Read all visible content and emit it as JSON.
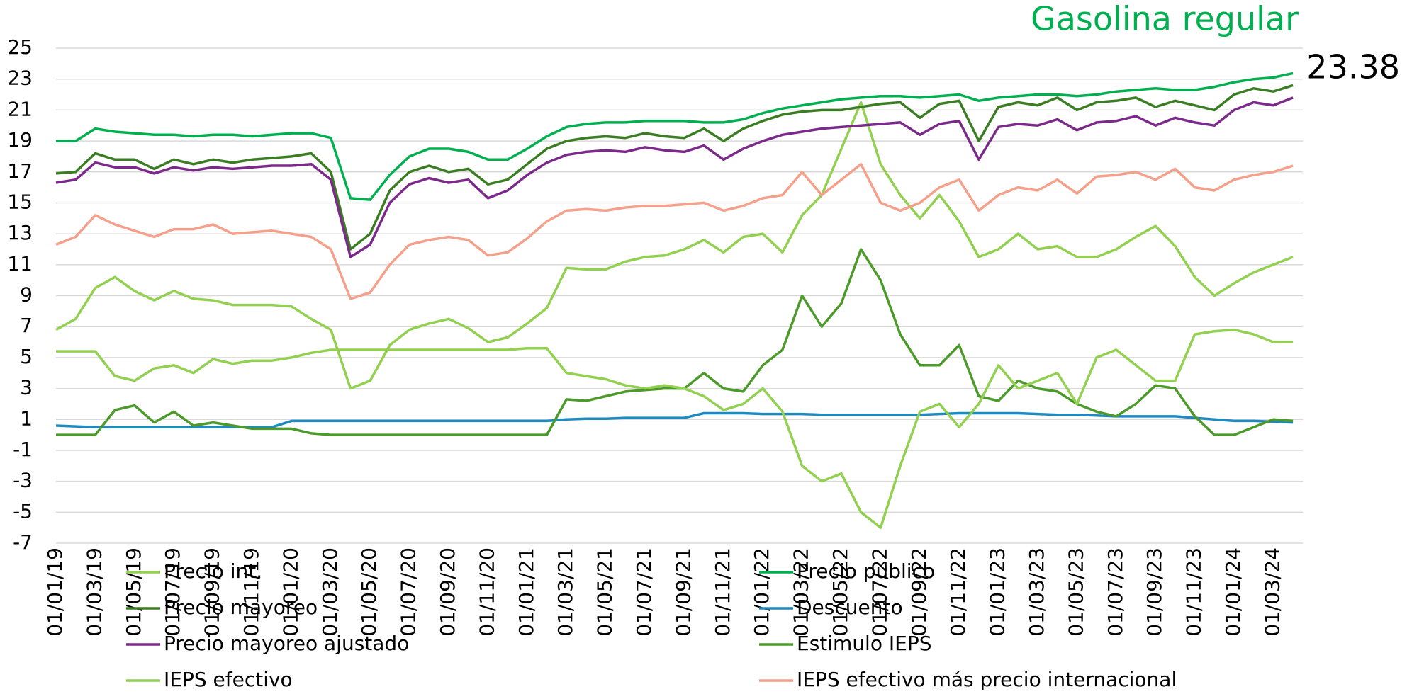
{
  "chart_data": {
    "type": "line",
    "title": "Gasolina regular",
    "annotation": "23.38",
    "categories": [
      "01/01/19",
      null,
      "01/03/19",
      null,
      "01/05/19",
      null,
      "01/07/19",
      null,
      "01/09/19",
      null,
      "01/11/19",
      null,
      "01/01/20",
      null,
      "01/03/20",
      null,
      "01/05/20",
      null,
      "01/07/20",
      null,
      "01/09/20",
      null,
      "01/11/20",
      null,
      "01/01/21",
      null,
      "01/03/21",
      null,
      "01/05/21",
      null,
      "01/07/21",
      null,
      "01/09/21",
      null,
      "01/11/21",
      null,
      "01/01/22",
      null,
      "01/03/22",
      null,
      "01/05/22",
      null,
      "01/07/22",
      null,
      "01/09/22",
      null,
      "01/11/22",
      null,
      "01/01/23",
      null,
      "01/03/23",
      null,
      "01/05/23",
      null,
      "01/07/23",
      null,
      "01/09/23",
      null,
      "01/11/23",
      null,
      "01/01/24",
      null,
      "01/03/24",
      null
    ],
    "ylim": [
      -7,
      25
    ],
    "yticks": [
      -7,
      -5,
      -3,
      -1,
      1,
      3,
      5,
      7,
      9,
      11,
      13,
      15,
      17,
      19,
      21,
      23,
      25
    ],
    "grid": true,
    "legend": "bottom",
    "series": [
      {
        "name": "Precio int.",
        "color": "#92d050",
        "values": [
          6.8,
          7.5,
          9.5,
          10.2,
          9.3,
          8.7,
          9.3,
          8.8,
          8.7,
          8.4,
          8.4,
          8.4,
          8.3,
          7.5,
          6.8,
          3.0,
          3.5,
          5.8,
          6.8,
          7.2,
          7.5,
          6.9,
          6.0,
          6.3,
          7.2,
          8.2,
          10.8,
          10.7,
          10.7,
          11.2,
          11.5,
          11.6,
          12.0,
          12.6,
          11.8,
          12.8,
          13.0,
          11.8,
          14.2,
          15.5,
          18.5,
          21.5,
          17.5,
          15.5,
          14.0,
          15.5,
          13.8,
          11.5,
          12.0,
          13.0,
          12.0,
          12.2,
          11.5,
          11.5,
          12.0,
          12.8,
          13.5,
          12.2,
          10.2,
          9.0,
          9.8,
          10.5,
          11.0,
          11.5
        ]
      },
      {
        "name": "Precio público",
        "color": "#00b050",
        "values": [
          19.0,
          19.0,
          19.8,
          19.6,
          19.5,
          19.4,
          19.4,
          19.3,
          19.4,
          19.4,
          19.3,
          19.4,
          19.5,
          19.5,
          19.2,
          15.3,
          15.2,
          16.8,
          18.0,
          18.5,
          18.5,
          18.3,
          17.8,
          17.8,
          18.5,
          19.3,
          19.9,
          20.1,
          20.2,
          20.2,
          20.3,
          20.3,
          20.3,
          20.2,
          20.2,
          20.4,
          20.8,
          21.1,
          21.3,
          21.5,
          21.7,
          21.8,
          21.9,
          21.9,
          21.8,
          21.9,
          22.0,
          21.6,
          21.8,
          21.9,
          22.0,
          22.0,
          21.9,
          22.0,
          22.2,
          22.3,
          22.4,
          22.3,
          22.3,
          22.5,
          22.8,
          23.0,
          23.1,
          23.38
        ]
      },
      {
        "name": "Precio mayoreo",
        "color": "#3a7d22",
        "values": [
          16.9,
          17.0,
          18.2,
          17.8,
          17.8,
          17.2,
          17.8,
          17.5,
          17.8,
          17.6,
          17.8,
          17.9,
          18.0,
          18.2,
          17.0,
          12.0,
          13.0,
          15.8,
          17.0,
          17.4,
          17.0,
          17.2,
          16.2,
          16.5,
          17.5,
          18.5,
          19.0,
          19.2,
          19.3,
          19.2,
          19.5,
          19.3,
          19.2,
          19.8,
          19.0,
          19.8,
          20.3,
          20.7,
          20.9,
          21.0,
          21.0,
          21.2,
          21.4,
          21.5,
          20.5,
          21.4,
          21.6,
          19.0,
          21.2,
          21.5,
          21.3,
          21.8,
          21.0,
          21.5,
          21.6,
          21.8,
          21.2,
          21.6,
          21.3,
          21.0,
          22.0,
          22.4,
          22.2,
          22.6
        ]
      },
      {
        "name": "Descuento",
        "color": "#1f8ac0",
        "values": [
          0.6,
          0.55,
          0.5,
          0.5,
          0.5,
          0.5,
          0.5,
          0.5,
          0.5,
          0.5,
          0.5,
          0.5,
          0.9,
          0.9,
          0.9,
          0.9,
          0.9,
          0.9,
          0.9,
          0.9,
          0.9,
          0.9,
          0.9,
          0.9,
          0.9,
          0.9,
          1.0,
          1.05,
          1.05,
          1.1,
          1.1,
          1.1,
          1.1,
          1.4,
          1.4,
          1.4,
          1.35,
          1.35,
          1.35,
          1.3,
          1.3,
          1.3,
          1.3,
          1.3,
          1.3,
          1.35,
          1.4,
          1.4,
          1.4,
          1.4,
          1.35,
          1.3,
          1.3,
          1.25,
          1.2,
          1.2,
          1.2,
          1.2,
          1.1,
          1.0,
          0.9,
          0.9,
          0.85,
          0.8
        ]
      },
      {
        "name": "Precio mayoreo ajustado",
        "color": "#7b2a8a",
        "values": [
          16.3,
          16.5,
          17.6,
          17.3,
          17.3,
          16.9,
          17.3,
          17.1,
          17.3,
          17.2,
          17.3,
          17.4,
          17.4,
          17.5,
          16.5,
          11.5,
          12.3,
          15.0,
          16.2,
          16.6,
          16.3,
          16.5,
          15.3,
          15.8,
          16.8,
          17.6,
          18.1,
          18.3,
          18.4,
          18.3,
          18.6,
          18.4,
          18.3,
          18.7,
          17.8,
          18.5,
          19.0,
          19.4,
          19.6,
          19.8,
          19.9,
          20.0,
          20.1,
          20.2,
          19.4,
          20.1,
          20.3,
          17.8,
          19.9,
          20.1,
          20.0,
          20.4,
          19.7,
          20.2,
          20.3,
          20.6,
          20.0,
          20.5,
          20.2,
          20.0,
          21.0,
          21.5,
          21.3,
          21.8
        ]
      },
      {
        "name": "Estimulo IEPS",
        "color": "#4c9a2a",
        "values": [
          0,
          0,
          0,
          1.6,
          1.9,
          0.8,
          1.5,
          0.6,
          0.8,
          0.6,
          0.4,
          0.4,
          0.4,
          0.1,
          0,
          0,
          0,
          0,
          0,
          0,
          0,
          0,
          0,
          0,
          0,
          0,
          2.3,
          2.2,
          2.5,
          2.8,
          2.9,
          3.0,
          3.0,
          4.0,
          3.0,
          2.8,
          4.5,
          5.5,
          9.0,
          7.0,
          8.5,
          12.0,
          10.0,
          6.5,
          4.5,
          4.5,
          5.8,
          2.5,
          2.2,
          3.5,
          3.0,
          2.8,
          2.0,
          1.5,
          1.2,
          2.0,
          3.2,
          3.0,
          1.2,
          0,
          0,
          0.5,
          1.0,
          0.9
        ]
      },
      {
        "name": "IEPS efectivo",
        "color": "#92d050",
        "values": [
          5.4,
          5.4,
          5.4,
          3.8,
          3.5,
          4.3,
          4.5,
          4.0,
          4.9,
          4.6,
          4.8,
          4.8,
          5.0,
          5.3,
          5.5,
          5.5,
          5.5,
          5.5,
          5.5,
          5.5,
          5.5,
          5.5,
          5.5,
          5.5,
          5.6,
          5.6,
          4.0,
          3.8,
          3.6,
          3.2,
          3.0,
          3.2,
          3.0,
          2.5,
          1.6,
          2.0,
          3.0,
          1.5,
          -2.0,
          -3.0,
          -2.5,
          -5.0,
          -6.0,
          -2.0,
          1.5,
          2.0,
          0.5,
          2.0,
          4.5,
          3.0,
          3.5,
          4.0,
          2.0,
          5.0,
          5.5,
          4.5,
          3.5,
          3.5,
          6.5,
          6.7,
          6.8,
          6.5,
          6.0,
          6.0
        ]
      },
      {
        "name": "IEPS efectivo más precio internacional",
        "color": "#f4a08a",
        "values": [
          12.3,
          12.8,
          14.2,
          13.6,
          13.2,
          12.8,
          13.3,
          13.3,
          13.6,
          13.0,
          13.1,
          13.2,
          13.0,
          12.8,
          12.0,
          8.8,
          9.2,
          11.0,
          12.3,
          12.6,
          12.8,
          12.6,
          11.6,
          11.8,
          12.7,
          13.8,
          14.5,
          14.6,
          14.5,
          14.7,
          14.8,
          14.8,
          14.9,
          15.0,
          14.5,
          14.8,
          15.3,
          15.5,
          17.0,
          15.5,
          16.5,
          17.5,
          15.0,
          14.5,
          15.0,
          16.0,
          16.5,
          14.5,
          15.5,
          16.0,
          15.8,
          16.5,
          15.6,
          16.7,
          16.8,
          17.0,
          16.5,
          17.2,
          16.0,
          15.8,
          16.5,
          16.8,
          17.0,
          17.4
        ]
      }
    ]
  }
}
